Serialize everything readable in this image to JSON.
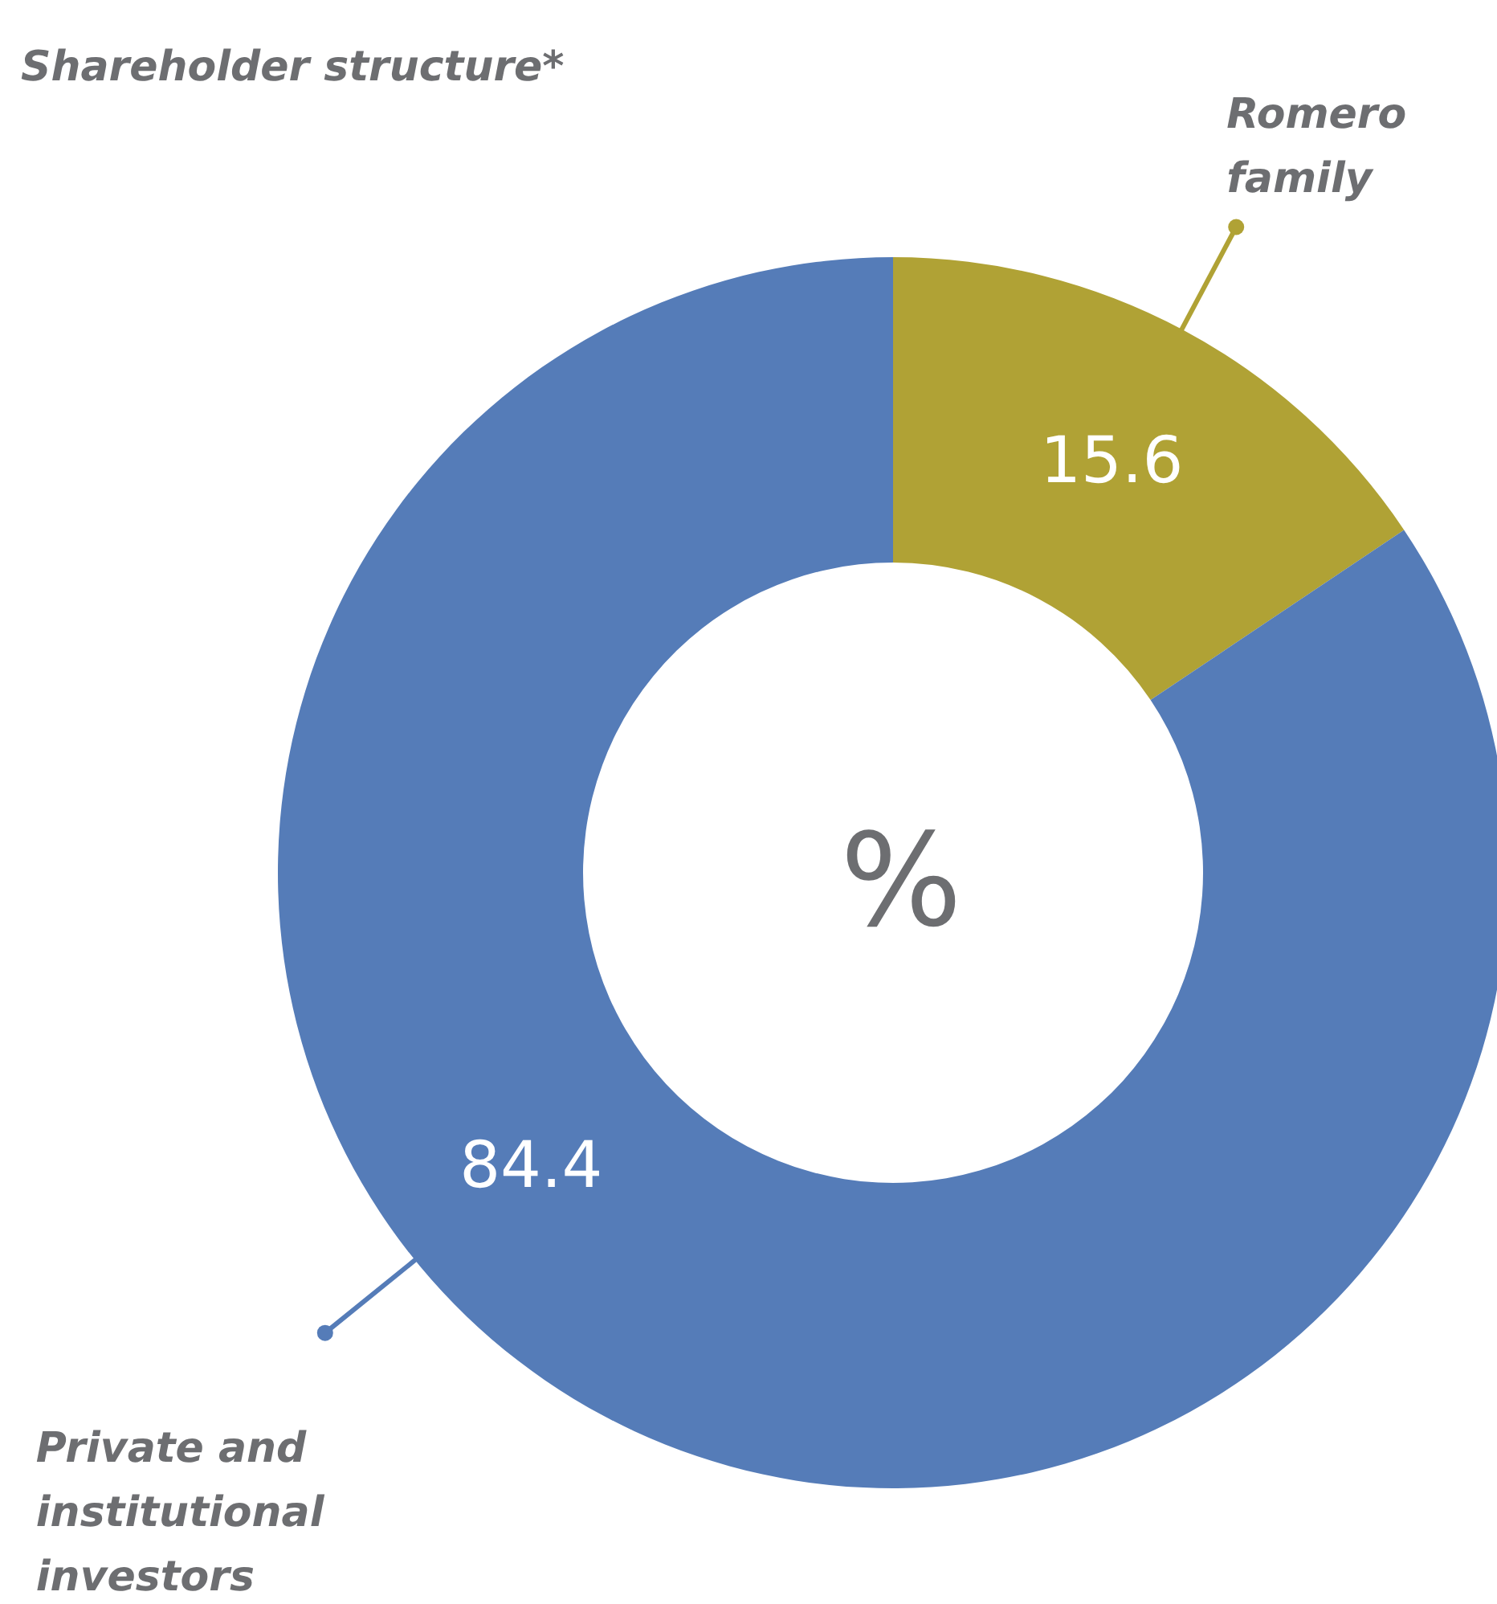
{
  "chart_data": {
    "type": "donut",
    "title": "Shareholder structure*",
    "categories": [
      "Romero family",
      "Private and institutional investors"
    ],
    "values": [
      15.6,
      84.4
    ],
    "colors": [
      "#b0a235",
      "#557cb8"
    ],
    "data_labels": true,
    "annotations": [
      "%"
    ]
  }
}
